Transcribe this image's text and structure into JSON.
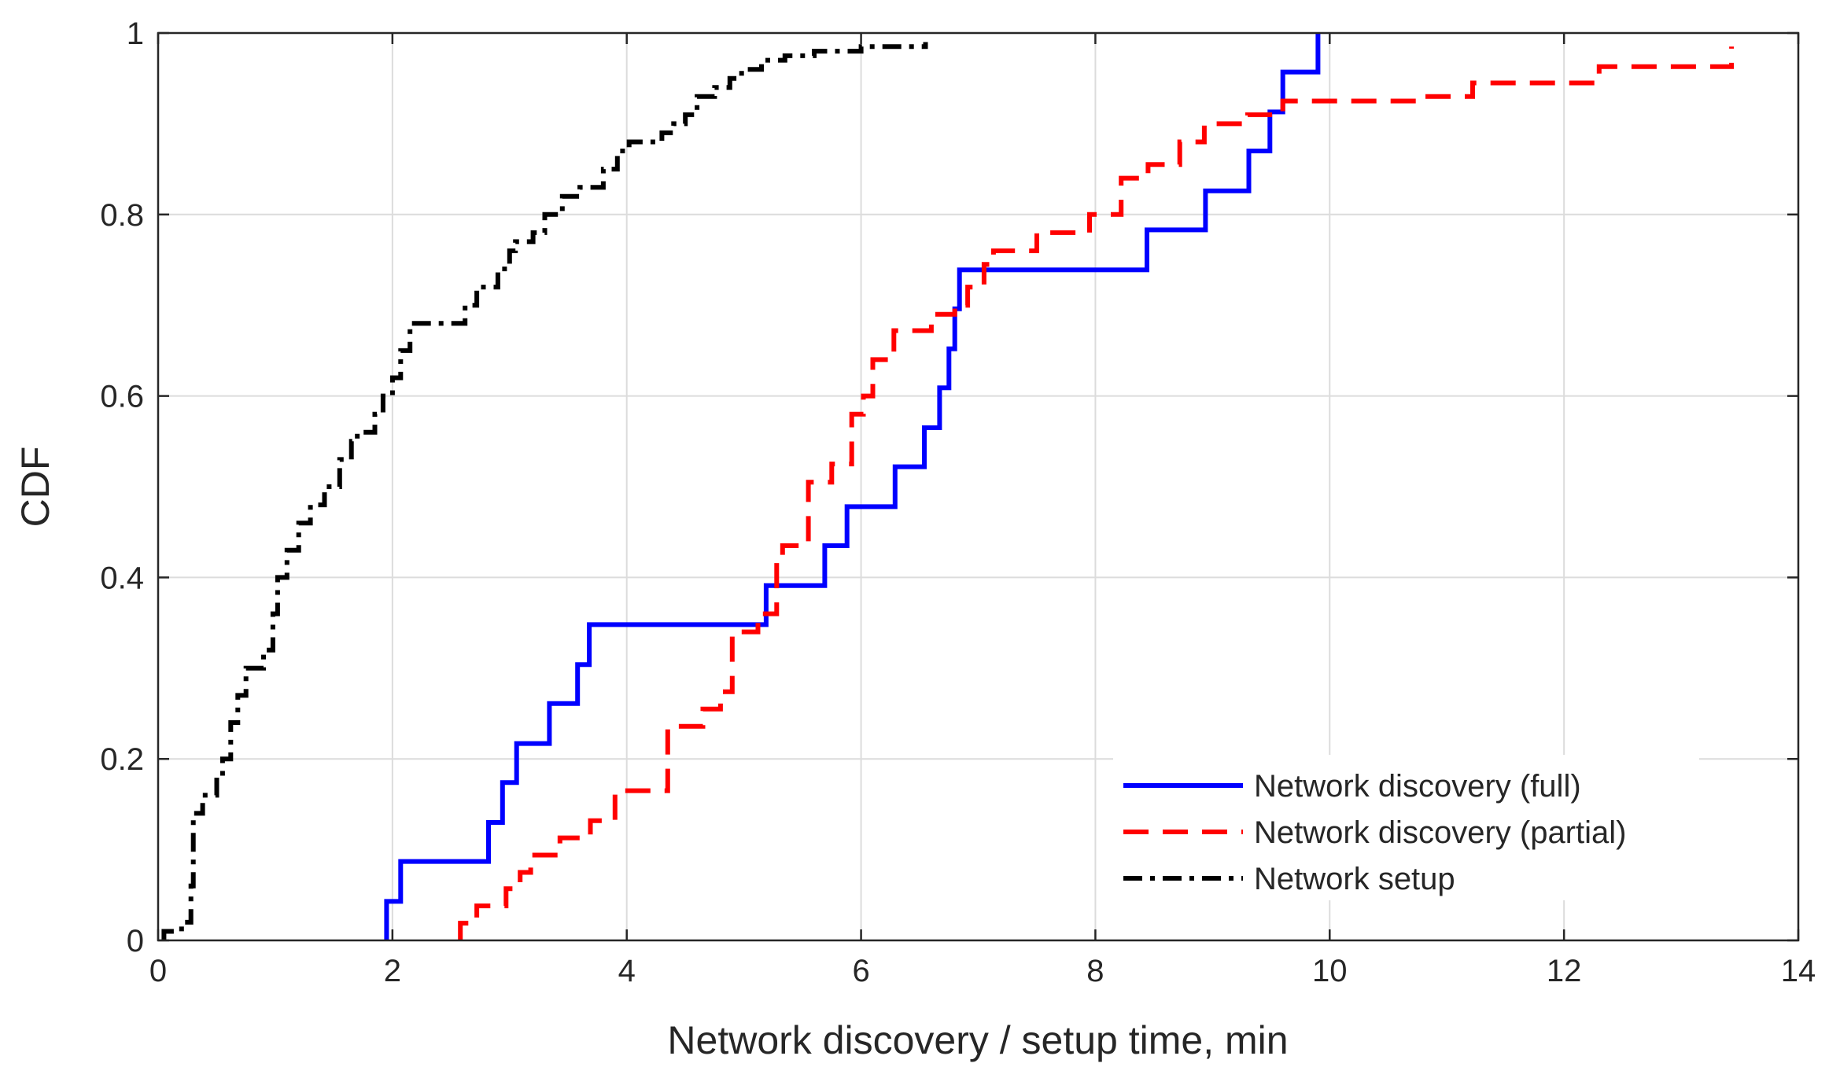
{
  "chart_data": {
    "type": "line",
    "subtype": "empirical-cdf-step",
    "title": "",
    "xlabel": "Network discovery / setup time, min",
    "ylabel": "CDF",
    "xlim": [
      0,
      14
    ],
    "ylim": [
      0,
      1
    ],
    "xticks": [
      0,
      2,
      4,
      6,
      8,
      10,
      12,
      14
    ],
    "xtick_labels": [
      "0",
      "2",
      "4",
      "6",
      "8",
      "10",
      "12",
      "14"
    ],
    "yticks": [
      0,
      0.2,
      0.4,
      0.6,
      0.8,
      1
    ],
    "ytick_labels": [
      "0",
      "0.2",
      "0.4",
      "0.6",
      "0.8",
      "1"
    ],
    "grid": true,
    "legend_position": "bottom-right",
    "series": [
      {
        "name": "Network discovery (full)",
        "color": "#0000ff",
        "style": "solid",
        "x": [
          1.95,
          2.07,
          2.82,
          2.94,
          3.06,
          3.34,
          3.58,
          3.68,
          5.19,
          5.69,
          5.88,
          6.29,
          6.54,
          6.67,
          6.75,
          6.8,
          6.84,
          8.44,
          8.94,
          9.31,
          9.49,
          9.6,
          9.9
        ],
        "y": [
          0.043,
          0.087,
          0.13,
          0.174,
          0.217,
          0.261,
          0.304,
          0.348,
          0.391,
          0.435,
          0.478,
          0.522,
          0.565,
          0.609,
          0.652,
          0.696,
          0.739,
          0.783,
          0.826,
          0.87,
          0.913,
          0.957,
          1.0
        ]
      },
      {
        "name": "Network discovery (partial)",
        "color": "#ff0000",
        "style": "dashed",
        "x": [
          2.58,
          2.72,
          2.97,
          3.09,
          3.18,
          3.43,
          3.69,
          3.9,
          4.35,
          4.65,
          4.8,
          4.9,
          5.12,
          5.28,
          5.33,
          5.55,
          5.75,
          5.92,
          6.02,
          6.1,
          6.28,
          6.6,
          6.8,
          6.91,
          7.05,
          7.13,
          7.5,
          7.95,
          8.22,
          8.45,
          8.72,
          8.93,
          9.3,
          9.6,
          10.74,
          11.22,
          12.3,
          13.43
        ],
        "y": [
          0.019,
          0.038,
          0.057,
          0.075,
          0.094,
          0.113,
          0.132,
          0.165,
          0.236,
          0.255,
          0.274,
          0.34,
          0.36,
          0.42,
          0.435,
          0.505,
          0.525,
          0.58,
          0.6,
          0.64,
          0.672,
          0.69,
          0.7,
          0.72,
          0.745,
          0.76,
          0.78,
          0.8,
          0.84,
          0.855,
          0.88,
          0.9,
          0.91,
          0.925,
          0.93,
          0.945,
          0.963,
          0.985
        ]
      },
      {
        "name": "Network setup",
        "color": "#000000",
        "style": "dash-dot",
        "x": [
          0.05,
          0.2,
          0.28,
          0.3,
          0.38,
          0.5,
          0.55,
          0.62,
          0.68,
          0.75,
          0.9,
          0.98,
          1.02,
          1.1,
          1.2,
          1.3,
          1.42,
          1.55,
          1.65,
          1.7,
          1.85,
          1.92,
          2.0,
          2.07,
          2.15,
          2.62,
          2.72,
          2.9,
          3.0,
          3.05,
          3.2,
          3.3,
          3.45,
          3.6,
          3.8,
          3.92,
          4.02,
          4.3,
          4.4,
          4.5,
          4.6,
          4.75,
          4.88,
          4.98,
          5.15,
          5.35,
          5.6,
          6.0,
          6.55
        ],
        "y": [
          0.01,
          0.02,
          0.06,
          0.14,
          0.16,
          0.18,
          0.2,
          0.24,
          0.27,
          0.3,
          0.32,
          0.36,
          0.4,
          0.43,
          0.46,
          0.48,
          0.5,
          0.53,
          0.55,
          0.56,
          0.58,
          0.6,
          0.62,
          0.65,
          0.68,
          0.7,
          0.72,
          0.74,
          0.76,
          0.77,
          0.78,
          0.8,
          0.82,
          0.83,
          0.85,
          0.87,
          0.88,
          0.89,
          0.9,
          0.91,
          0.93,
          0.94,
          0.95,
          0.96,
          0.97,
          0.975,
          0.98,
          0.985,
          0.99
        ]
      }
    ]
  }
}
